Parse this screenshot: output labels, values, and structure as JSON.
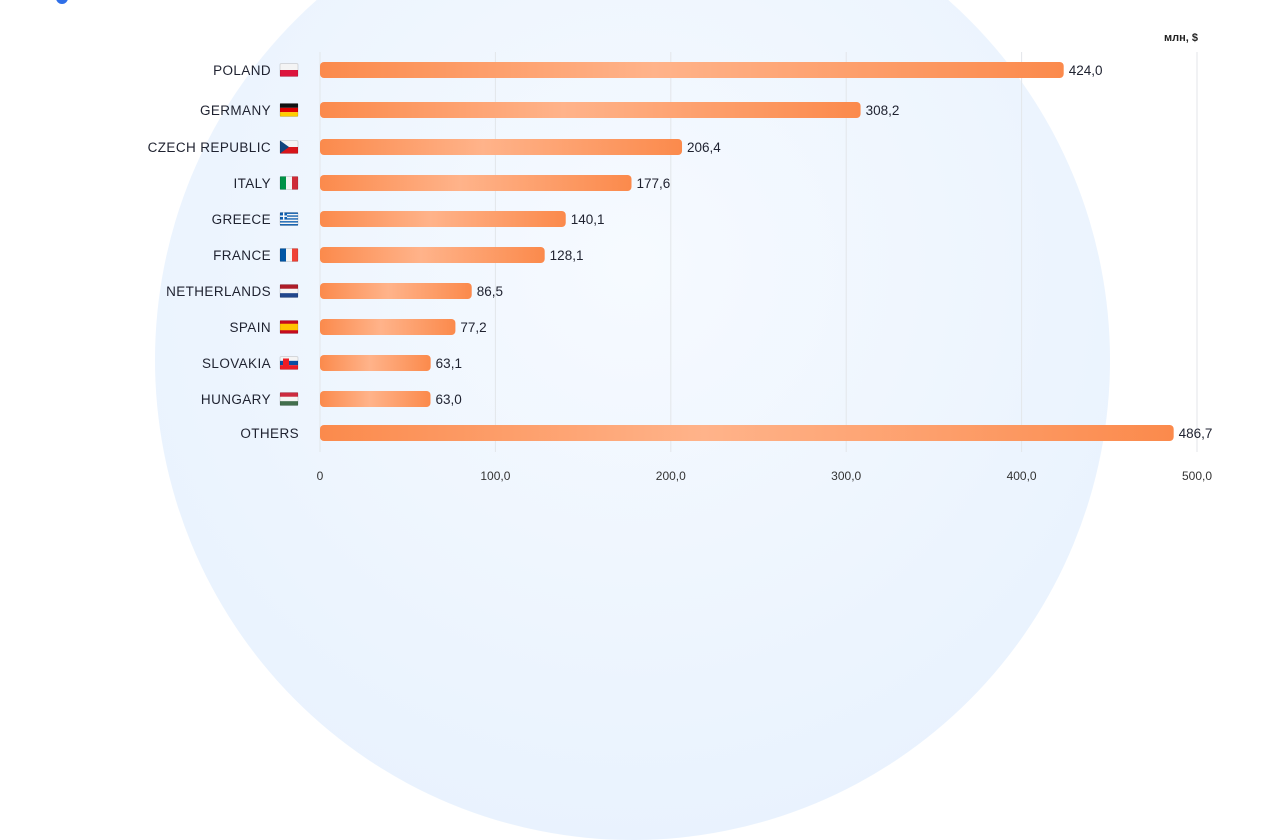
{
  "chart_data": {
    "type": "bar",
    "orientation": "horizontal",
    "unit_label": "млн, $",
    "categories": [
      "POLAND",
      "GERMANY",
      "CZECH REPUBLIC",
      "ITALY",
      "GREECE",
      "FRANCE",
      "NETHERLANDS",
      "SPAIN",
      "SLOVAKIA",
      "HUNGARY",
      "OTHERS"
    ],
    "flags": [
      "pl",
      "de",
      "cz",
      "it",
      "gr",
      "fr",
      "nl",
      "es",
      "sk",
      "hu",
      null
    ],
    "values": [
      424.0,
      308.2,
      206.4,
      177.6,
      140.1,
      128.1,
      86.5,
      77.2,
      63.1,
      63.0,
      486.7
    ],
    "value_labels": [
      "424,0",
      "308,2",
      "206,4",
      "177,6",
      "140,1",
      "128,1",
      "86,5",
      "77,2",
      "63,1",
      "63,0",
      "486,7"
    ],
    "xlim": [
      0,
      500
    ],
    "xticks": [
      0,
      100,
      200,
      300,
      400,
      500
    ],
    "xtick_labels": [
      "0",
      "100,0",
      "200,0",
      "300,0",
      "400,0",
      "500,0"
    ],
    "grid": "vertical",
    "colors": {
      "bar": "#fb8a4c",
      "bar_highlight": "#ffc7a3",
      "grid": "#e3e6ea",
      "background_circle": "#eaf3fe"
    }
  }
}
